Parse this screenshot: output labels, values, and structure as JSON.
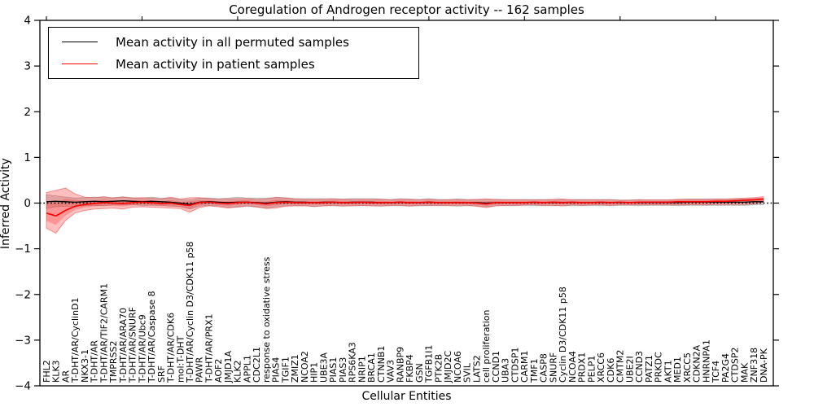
{
  "title": "Coregulation of Androgen receptor activity -- 162 samples",
  "axes": {
    "ylabel": "Inferred Activity",
    "xlabel": "Cellular Entities",
    "ytick_labels": [
      "4",
      "3",
      "2",
      "1",
      "0",
      "−1",
      "−2",
      "−3",
      "−4"
    ],
    "ytick_values": [
      4,
      3,
      2,
      1,
      0,
      -1,
      -2,
      -3,
      -4
    ]
  },
  "legend": {
    "entries": [
      {
        "label": "Mean activity in all permuted samples",
        "color": "#000000"
      },
      {
        "label": "Mean activity in patient samples",
        "color": "#ff0000"
      }
    ]
  },
  "chart_data": {
    "type": "line",
    "title": "Coregulation of Androgen receptor activity -- 162 samples",
    "xlabel": "Cellular Entities",
    "ylabel": "Inferred Activity",
    "ylim": [
      -4,
      4
    ],
    "zero_reference_line": true,
    "legend_position": "upper left",
    "categories": [
      "FHL2",
      "KLK3",
      "AR",
      "T-DHT/AR/CyclinD1",
      "NKX3-1",
      "T-DHT/AR",
      "T-DHT/AR/TIF2/CARM1",
      "TMPRSS2",
      "T-DHT/AR/ARA70",
      "T-DHT/AR/SNURF",
      "T-DHT/AR/Ubc9",
      "T-DHT/AR/Caspase 8",
      "SRF",
      "T-DHT/AR/CDK6",
      "mol:T-DHT",
      "T-DHT/AR/Cyclin D3/CDK11 p58",
      "PAWR",
      "T-DHT/AR/PRX1",
      "AOF2",
      "JMJD1A",
      "KLK2",
      "APPL1",
      "CDC2L1",
      "response to oxidative stress",
      "PIAS4",
      "TGIF1",
      "ZMIZ1",
      "NCOA2",
      "HIP1",
      "UBE3A",
      "PIAS1",
      "PIAS3",
      "RPS6KA3",
      "NRIP1",
      "BRCA1",
      "CTNNB1",
      "VAV3",
      "RANBP9",
      "FKBP4",
      "GSN",
      "TGFB1I1",
      "PTK2B",
      "JMJD2C",
      "NCOA6",
      "SVIL",
      "LATS2",
      "cell proliferation",
      "CCND1",
      "UBA3",
      "CTDSP1",
      "CARM1",
      "TMF1",
      "CASP8",
      "SNURF",
      "Cyclin D3/CDK11 p58",
      "NCOA4",
      "PRDX1",
      "PELP1",
      "XRCC6",
      "CDK6",
      "CMTM2",
      "UBE2I",
      "CCND3",
      "PATZ1",
      "PRKDC",
      "AKT1",
      "MED1",
      "XRCC5",
      "CDKN2A",
      "HNRNPA1",
      "TCF4",
      "PA2G4",
      "CTDSP2",
      "MAK",
      "ZNF318",
      "DNA-PK"
    ],
    "series": [
      {
        "name": "Mean activity in all permuted samples",
        "color": "#000000",
        "band_color": "#787878",
        "values": [
          0.03,
          0.04,
          0.03,
          0.02,
          0.03,
          0.04,
          0.03,
          0.04,
          0.05,
          0.04,
          0.03,
          0.04,
          0.03,
          0.02,
          0.0,
          -0.03,
          0.02,
          0.03,
          0.02,
          0.01,
          0.02,
          0.02,
          0.01,
          0.0,
          0.02,
          0.03,
          0.02,
          0.02,
          0.01,
          0.02,
          0.02,
          0.01,
          0.02,
          0.02,
          0.02,
          0.01,
          0.01,
          0.02,
          0.01,
          0.01,
          0.02,
          0.01,
          0.01,
          0.01,
          0.01,
          0.01,
          0.0,
          0.01,
          0.01,
          0.01,
          0.01,
          0.01,
          0.01,
          0.01,
          0.01,
          0.01,
          0.01,
          0.01,
          0.01,
          0.01,
          0.01,
          0.01,
          0.01,
          0.01,
          0.01,
          0.01,
          0.01,
          0.02,
          0.02,
          0.02,
          0.02,
          0.02,
          0.02,
          0.02,
          0.03,
          0.03
        ],
        "band_halfwidth": [
          0.15,
          0.12,
          0.1,
          0.09,
          0.09,
          0.09,
          0.09,
          0.08,
          0.09,
          0.08,
          0.08,
          0.09,
          0.08,
          0.09,
          0.08,
          0.1,
          0.09,
          0.08,
          0.08,
          0.1,
          0.11,
          0.09,
          0.1,
          0.11,
          0.1,
          0.09,
          0.08,
          0.08,
          0.09,
          0.08,
          0.08,
          0.08,
          0.08,
          0.08,
          0.08,
          0.08,
          0.07,
          0.08,
          0.08,
          0.07,
          0.08,
          0.07,
          0.07,
          0.08,
          0.07,
          0.07,
          0.08,
          0.07,
          0.07,
          0.07,
          0.07,
          0.07,
          0.07,
          0.07,
          0.07,
          0.07,
          0.07,
          0.07,
          0.07,
          0.07,
          0.06,
          0.06,
          0.07,
          0.06,
          0.06,
          0.06,
          0.07,
          0.07,
          0.07,
          0.07,
          0.07,
          0.07,
          0.07,
          0.07,
          0.07,
          0.07
        ]
      },
      {
        "name": "Mean activity in patient samples",
        "color": "#ff0000",
        "band_color": "#ff0000",
        "values": [
          -0.22,
          -0.28,
          -0.16,
          -0.07,
          -0.03,
          -0.01,
          0.01,
          0.0,
          -0.01,
          0.01,
          0.02,
          0.01,
          -0.01,
          0.0,
          -0.03,
          -0.05,
          0.01,
          0.02,
          0.0,
          -0.01,
          0.01,
          0.02,
          0.0,
          -0.02,
          0.01,
          0.02,
          0.01,
          0.01,
          0.01,
          0.01,
          0.02,
          0.01,
          0.01,
          0.02,
          0.01,
          0.01,
          0.01,
          0.02,
          0.01,
          0.01,
          0.02,
          0.01,
          0.01,
          0.01,
          0.01,
          0.0,
          -0.02,
          0.01,
          0.01,
          0.01,
          0.01,
          0.02,
          0.01,
          0.02,
          0.01,
          0.02,
          0.01,
          0.01,
          0.02,
          0.01,
          0.02,
          0.01,
          0.02,
          0.02,
          0.02,
          0.02,
          0.03,
          0.03,
          0.03,
          0.03,
          0.04,
          0.04,
          0.05,
          0.06,
          0.07,
          0.09
        ],
        "band_upper": [
          0.23,
          0.28,
          0.33,
          0.2,
          0.13,
          0.12,
          0.14,
          0.11,
          0.13,
          0.11,
          0.12,
          0.11,
          0.09,
          0.13,
          0.09,
          0.12,
          0.12,
          0.1,
          0.08,
          0.09,
          0.1,
          0.1,
          0.08,
          0.09,
          0.13,
          0.11,
          0.09,
          0.08,
          0.08,
          0.08,
          0.09,
          0.08,
          0.08,
          0.08,
          0.08,
          0.08,
          0.07,
          0.08,
          0.08,
          0.07,
          0.08,
          0.07,
          0.07,
          0.08,
          0.07,
          0.08,
          0.09,
          0.08,
          0.07,
          0.07,
          0.07,
          0.07,
          0.07,
          0.08,
          0.09,
          0.07,
          0.07,
          0.07,
          0.07,
          0.07,
          0.06,
          0.06,
          0.07,
          0.07,
          0.07,
          0.07,
          0.08,
          0.08,
          0.08,
          0.08,
          0.09,
          0.09,
          0.1,
          0.11,
          0.12,
          0.14
        ],
        "band_lower": [
          -0.55,
          -0.66,
          -0.38,
          -0.22,
          -0.16,
          -0.13,
          -0.12,
          -0.11,
          -0.13,
          -0.09,
          -0.08,
          -0.09,
          -0.1,
          -0.11,
          -0.12,
          -0.2,
          -0.1,
          -0.06,
          -0.08,
          -0.11,
          -0.08,
          -0.06,
          -0.08,
          -0.12,
          -0.11,
          -0.07,
          -0.06,
          -0.06,
          -0.07,
          -0.06,
          -0.05,
          -0.06,
          -0.06,
          -0.05,
          -0.06,
          -0.06,
          -0.05,
          -0.05,
          -0.06,
          -0.05,
          -0.05,
          -0.05,
          -0.05,
          -0.05,
          -0.05,
          -0.07,
          -0.1,
          -0.06,
          -0.05,
          -0.05,
          -0.04,
          -0.04,
          -0.05,
          -0.05,
          -0.06,
          -0.04,
          -0.05,
          -0.04,
          -0.04,
          -0.05,
          -0.04,
          -0.04,
          -0.04,
          -0.04,
          -0.04,
          -0.04,
          -0.04,
          -0.04,
          -0.04,
          -0.04,
          -0.03,
          -0.03,
          -0.03,
          -0.03,
          -0.02,
          0.02
        ]
      }
    ]
  }
}
